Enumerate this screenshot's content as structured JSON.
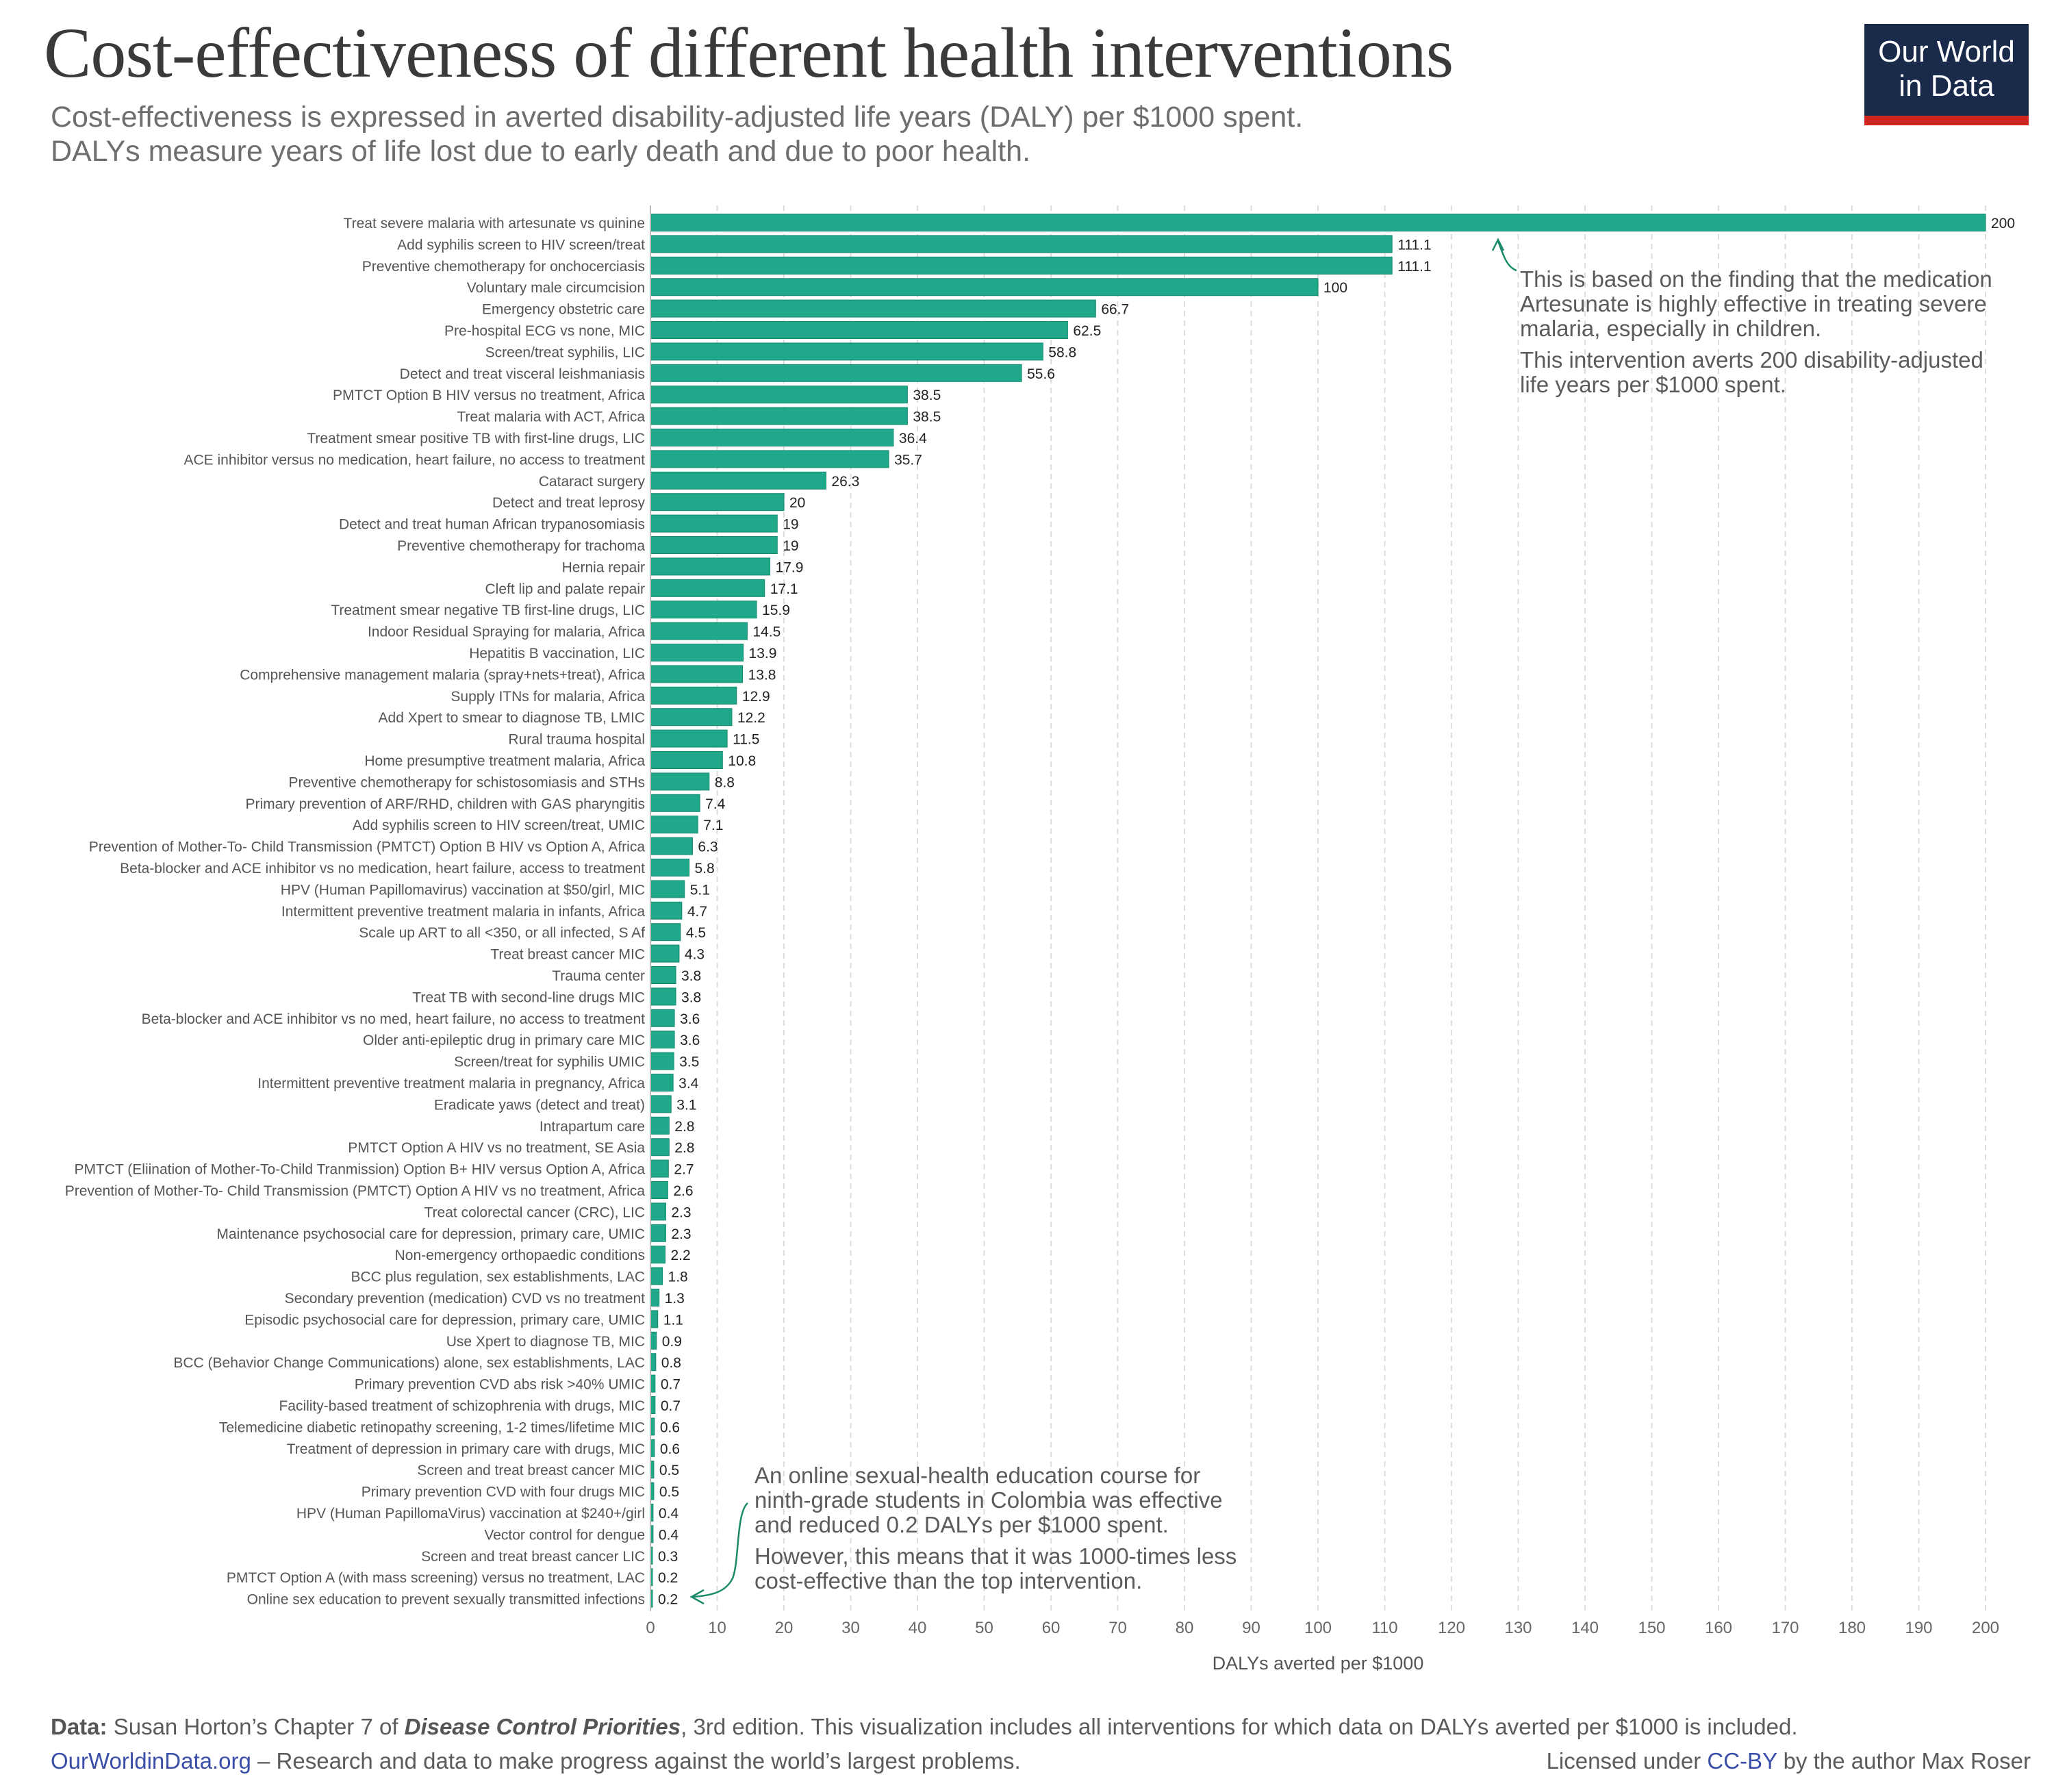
{
  "header": {
    "title": "Cost-effectiveness of different health interventions",
    "subtitle_line1": "Cost-effectiveness is expressed in averted disability-adjusted life years (DALY) per $1000 spent.",
    "subtitle_line2": "DALYs measure years of life lost due to early death and due to poor health.",
    "logo_line1": "Our World",
    "logo_line2": "in Data"
  },
  "annotations": {
    "top": [
      "This is based on the finding that the medication",
      "Artesunate is highly effective in treating severe",
      "malaria, especially in children."
    ],
    "top2": [
      "This intervention averts 200 disability-adjusted",
      "life years per $1000 spent."
    ],
    "bottom": [
      "An online sexual-health education course for",
      "ninth-grade students in Colombia was effective",
      "and reduced 0.2 DALYs per $1000 spent."
    ],
    "bottom2": [
      "However, this means that it was 1000-times less",
      "cost-effective than the top intervention."
    ]
  },
  "footer": {
    "data_label": "Data:",
    "data_text_1": " Susan Horton’s Chapter 7 of ",
    "data_italic": "Disease Control Priorities",
    "data_text_2": ", 3rd edition. This visualization includes all interventions for which data on DALYs averted per $1000 is included.",
    "site": "OurWorldinData.org",
    "tagline": " – Research and data to make progress against the world’s largest problems.",
    "license_prefix": "Licensed under ",
    "license_link": "CC-BY",
    "license_suffix": " by the author Max Roser"
  },
  "chart_data": {
    "type": "bar",
    "orientation": "horizontal",
    "xlabel": "DALYs averted per $1000",
    "xlim": [
      0,
      200
    ],
    "xticks": [
      0,
      10,
      20,
      30,
      40,
      50,
      60,
      70,
      80,
      90,
      100,
      110,
      120,
      130,
      140,
      150,
      160,
      170,
      180,
      190,
      200
    ],
    "grid": true,
    "bar_color": "#1fa98a",
    "categories": [
      "Treat severe malaria with artesunate vs quinine",
      "Add syphilis screen to HIV screen/treat",
      "Preventive chemotherapy for onchocerciasis",
      "Voluntary male circumcision",
      "Emergency obstetric care",
      "Pre-hospital ECG vs none, MIC",
      "Screen/treat syphilis, LIC",
      "Detect and treat visceral leishmaniasis",
      "PMTCT Option B HIV versus no treatment, Africa",
      "Treat malaria with ACT, Africa",
      "Treatment smear positive TB with first-line drugs, LIC",
      "ACE inhibitor versus no medication, heart failure, no access to treatment",
      "Cataract surgery",
      "Detect and treat leprosy",
      "Detect and treat human African trypanosomiasis",
      "Preventive chemotherapy for trachoma",
      "Hernia repair",
      "Cleft lip and palate repair",
      "Treatment smear negative TB first-line drugs, LIC",
      "Indoor Residual Spraying for malaria, Africa",
      "Hepatitis B vaccination, LIC",
      "Comprehensive management malaria (spray+nets+treat), Africa",
      "Supply ITNs for malaria, Africa",
      "Add Xpert to smear to diagnose TB, LMIC",
      "Rural trauma hospital",
      "Home presumptive treatment malaria, Africa",
      "Preventive chemotherapy for schistosomiasis and STHs",
      "Primary prevention of ARF/RHD, children with GAS pharyngitis",
      "Add syphilis screen to HIV screen/treat, UMIC",
      "Prevention of Mother-To- Child Transmission (PMTCT) Option B HIV vs Option A, Africa",
      "Beta-blocker and ACE inhibitor vs no medication, heart failure, access to treatment",
      "HPV (Human Papillomavirus) vaccination at $50/girl, MIC",
      "Intermittent preventive treatment malaria in infants, Africa",
      "Scale up ART to all <350, or all infected, S Af",
      "Treat breast cancer MIC",
      "Trauma center",
      "Treat TB with second-line drugs MIC",
      "Beta-blocker and ACE inhibitor vs no med, heart failure, no access to treatment",
      "Older anti-epileptic drug in primary care MIC",
      "Screen/treat for syphilis UMIC",
      "Intermittent preventive treatment malaria in pregnancy, Africa",
      "Eradicate yaws (detect and treat)",
      "Intrapartum care",
      "PMTCT Option A HIV vs no treatment, SE Asia",
      "PMTCT (Eliination of Mother-To-Child Tranmission) Option B+ HIV versus Option A, Africa",
      "Prevention of Mother-To- Child Transmission (PMTCT) Option A HIV vs no treatment, Africa",
      "Treat colorectal cancer (CRC), LIC",
      "Maintenance psychosocial care for depression, primary care, UMIC",
      "Non-emergency orthopaedic conditions",
      "BCC plus regulation, sex establishments, LAC",
      "Secondary prevention (medication) CVD vs no treatment",
      "Episodic psychosocial care for depression, primary care, UMIC",
      "Use Xpert to diagnose TB, MIC",
      "BCC (Behavior Change Communications) alone, sex establishments, LAC",
      "Primary prevention CVD abs risk >40% UMIC",
      "Facility-based treatment of schizophrenia with drugs, MIC",
      "Telemedicine diabetic retinopathy screening, 1-2 times/lifetime MIC",
      "Treatment of depression in primary care with drugs, MIC",
      "Screen and treat breast cancer MIC",
      "Primary prevention CVD with four drugs MIC",
      "HPV (Human PapillomaVirus) vaccination at $240+/girl",
      "Vector control for dengue",
      "Screen and treat breast cancer LIC",
      "PMTCT Option A (with mass screening) versus no treatment, LAC",
      "Online sex education to prevent sexually transmitted infections"
    ],
    "values": [
      200,
      111.1,
      111.1,
      100,
      66.7,
      62.5,
      58.8,
      55.6,
      38.5,
      38.5,
      36.4,
      35.7,
      26.3,
      20,
      19,
      19,
      17.9,
      17.1,
      15.9,
      14.5,
      13.9,
      13.8,
      12.9,
      12.2,
      11.5,
      10.8,
      8.8,
      7.4,
      7.1,
      6.3,
      5.8,
      5.1,
      4.7,
      4.5,
      4.3,
      3.8,
      3.8,
      3.6,
      3.6,
      3.5,
      3.4,
      3.1,
      2.8,
      2.8,
      2.7,
      2.6,
      2.3,
      2.3,
      2.2,
      1.8,
      1.3,
      1.1,
      0.9,
      0.8,
      0.7,
      0.7,
      0.6,
      0.6,
      0.5,
      0.5,
      0.4,
      0.4,
      0.3,
      0.2,
      0.2
    ]
  }
}
